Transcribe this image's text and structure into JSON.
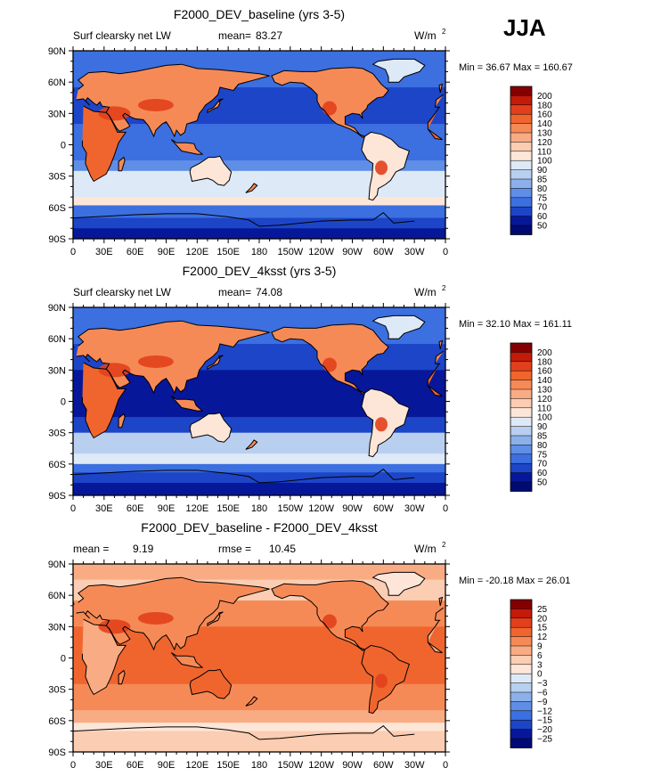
{
  "season": "JJA",
  "x_ticks": [
    "0",
    "30E",
    "60E",
    "90E",
    "120E",
    "150E",
    "180",
    "150W",
    "120W",
    "90W",
    "60W",
    "30W",
    "0"
  ],
  "y_ticks": [
    "90N",
    "60N",
    "30N",
    "0",
    "30S",
    "60S",
    "90S"
  ],
  "panels": [
    {
      "title": "F2000_DEV_baseline (yrs 3-5)",
      "left_label": "Surf clearsky net LW",
      "stat_label": "mean=",
      "stat_value": "83.27",
      "stat2_label": "",
      "stat2_value": "",
      "units": "W/m",
      "units_sup": "2",
      "min_label": "Min =",
      "min_value": "36.67",
      "max_label": "Max =",
      "max_value": "160.67",
      "colorbar": [
        "200",
        "180",
        "160",
        "140",
        "130",
        "120",
        "110",
        "100",
        "90",
        "85",
        "80",
        "75",
        "70",
        "60",
        "50"
      ],
      "colors": [
        "#840000",
        "#c41a0a",
        "#e2401c",
        "#f0652e",
        "#f68a56",
        "#f9ab84",
        "#fbcdb2",
        "#fde6d8",
        "#dde9f6",
        "#b8cff0",
        "#8cb0ea",
        "#5f8ee6",
        "#3c6fe0",
        "#1d45c8",
        "#07179a",
        "#000a73"
      ]
    },
    {
      "title": "F2000_DEV_4ksst (yrs 3-5)",
      "left_label": "Surf clearsky net LW",
      "stat_label": "mean=",
      "stat_value": "74.08",
      "stat2_label": "",
      "stat2_value": "",
      "units": "W/m",
      "units_sup": "2",
      "min_label": "Min =",
      "min_value": "32.10",
      "max_label": "Max =",
      "max_value": "161.11",
      "colorbar": [
        "200",
        "180",
        "160",
        "140",
        "130",
        "120",
        "110",
        "100",
        "90",
        "85",
        "80",
        "75",
        "70",
        "60",
        "50"
      ],
      "colors": [
        "#840000",
        "#c41a0a",
        "#e2401c",
        "#f0652e",
        "#f68a56",
        "#f9ab84",
        "#fbcdb2",
        "#fde6d8",
        "#dde9f6",
        "#b8cff0",
        "#8cb0ea",
        "#5f8ee6",
        "#3c6fe0",
        "#1d45c8",
        "#07179a",
        "#000a73"
      ]
    },
    {
      "title": "F2000_DEV_baseline - F2000_DEV_4ksst",
      "left_label": "",
      "stat_label": "mean =",
      "stat_value": "9.19",
      "stat2_label": "rmse =",
      "stat2_value": "10.45",
      "units": "W/m",
      "units_sup": "2",
      "min_label": "Min =",
      "min_value": "-20.18",
      "max_label": "Max =",
      "max_value": "26.01",
      "colorbar": [
        "25",
        "20",
        "15",
        "12",
        "9",
        "6",
        "3",
        "0",
        "−3",
        "−6",
        "−9",
        "−12",
        "−15",
        "−20",
        "−25"
      ],
      "colors": [
        "#840000",
        "#c41a0a",
        "#e2401c",
        "#f0652e",
        "#f68a56",
        "#f9ab84",
        "#fbcdb2",
        "#fde6d8",
        "#dde9f6",
        "#b8cff0",
        "#8cb0ea",
        "#5f8ee6",
        "#3c6fe0",
        "#1d45c8",
        "#07179a",
        "#000a73"
      ]
    }
  ]
}
